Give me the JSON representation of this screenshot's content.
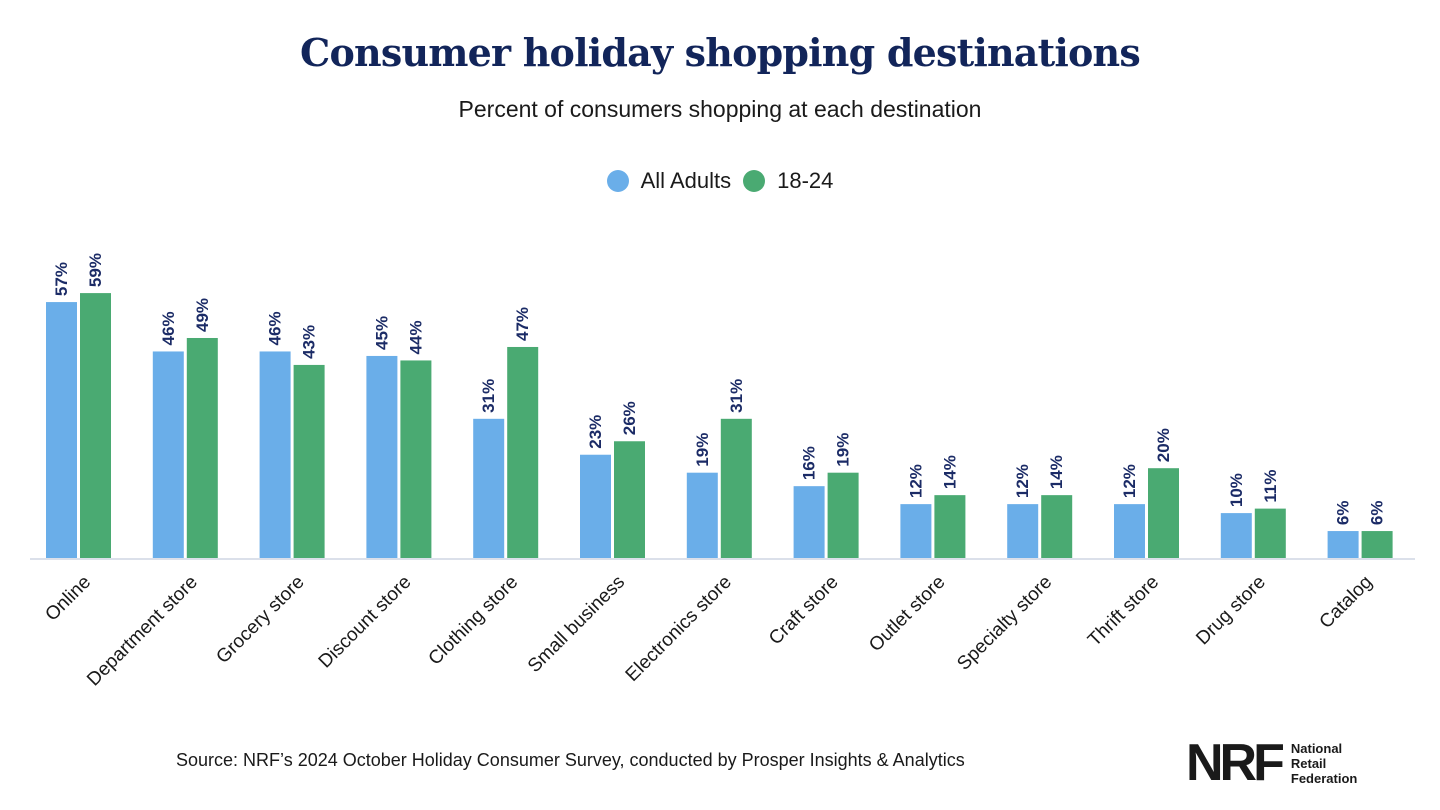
{
  "title": "Consumer holiday shopping destinations",
  "subtitle": "Percent of consumers shopping at each destination",
  "source": "Source: NRF’s 2024 October Holiday Consumer Survey, conducted by Prosper Insights & Analytics",
  "logo": {
    "mark": "NRF",
    "line1": "National",
    "line2": "Retail",
    "line3": "Federation"
  },
  "colors": {
    "all_adults": "#6aaee9",
    "age_18_24": "#4aaa72",
    "label": "#1b2b66",
    "title": "#12255a"
  },
  "chart_data": {
    "type": "bar",
    "title": "Consumer holiday shopping destinations",
    "subtitle": "Percent of consumers shopping at each destination",
    "xlabel": "",
    "ylabel": "",
    "ylim": [
      0,
      60
    ],
    "unit": "%",
    "legend": "top-center",
    "categories": [
      "Online",
      "Department store",
      "Grocery store",
      "Discount store",
      "Clothing store",
      "Small business",
      "Electronics store",
      "Craft store",
      "Outlet store",
      "Specialty store",
      "Thrift store",
      "Drug store",
      "Catalog"
    ],
    "series": [
      {
        "name": "All Adults",
        "values": [
          57,
          46,
          46,
          45,
          31,
          23,
          19,
          16,
          12,
          12,
          12,
          10,
          6
        ]
      },
      {
        "name": "18-24",
        "values": [
          59,
          49,
          43,
          44,
          47,
          26,
          31,
          19,
          14,
          14,
          20,
          11,
          6
        ]
      }
    ]
  }
}
